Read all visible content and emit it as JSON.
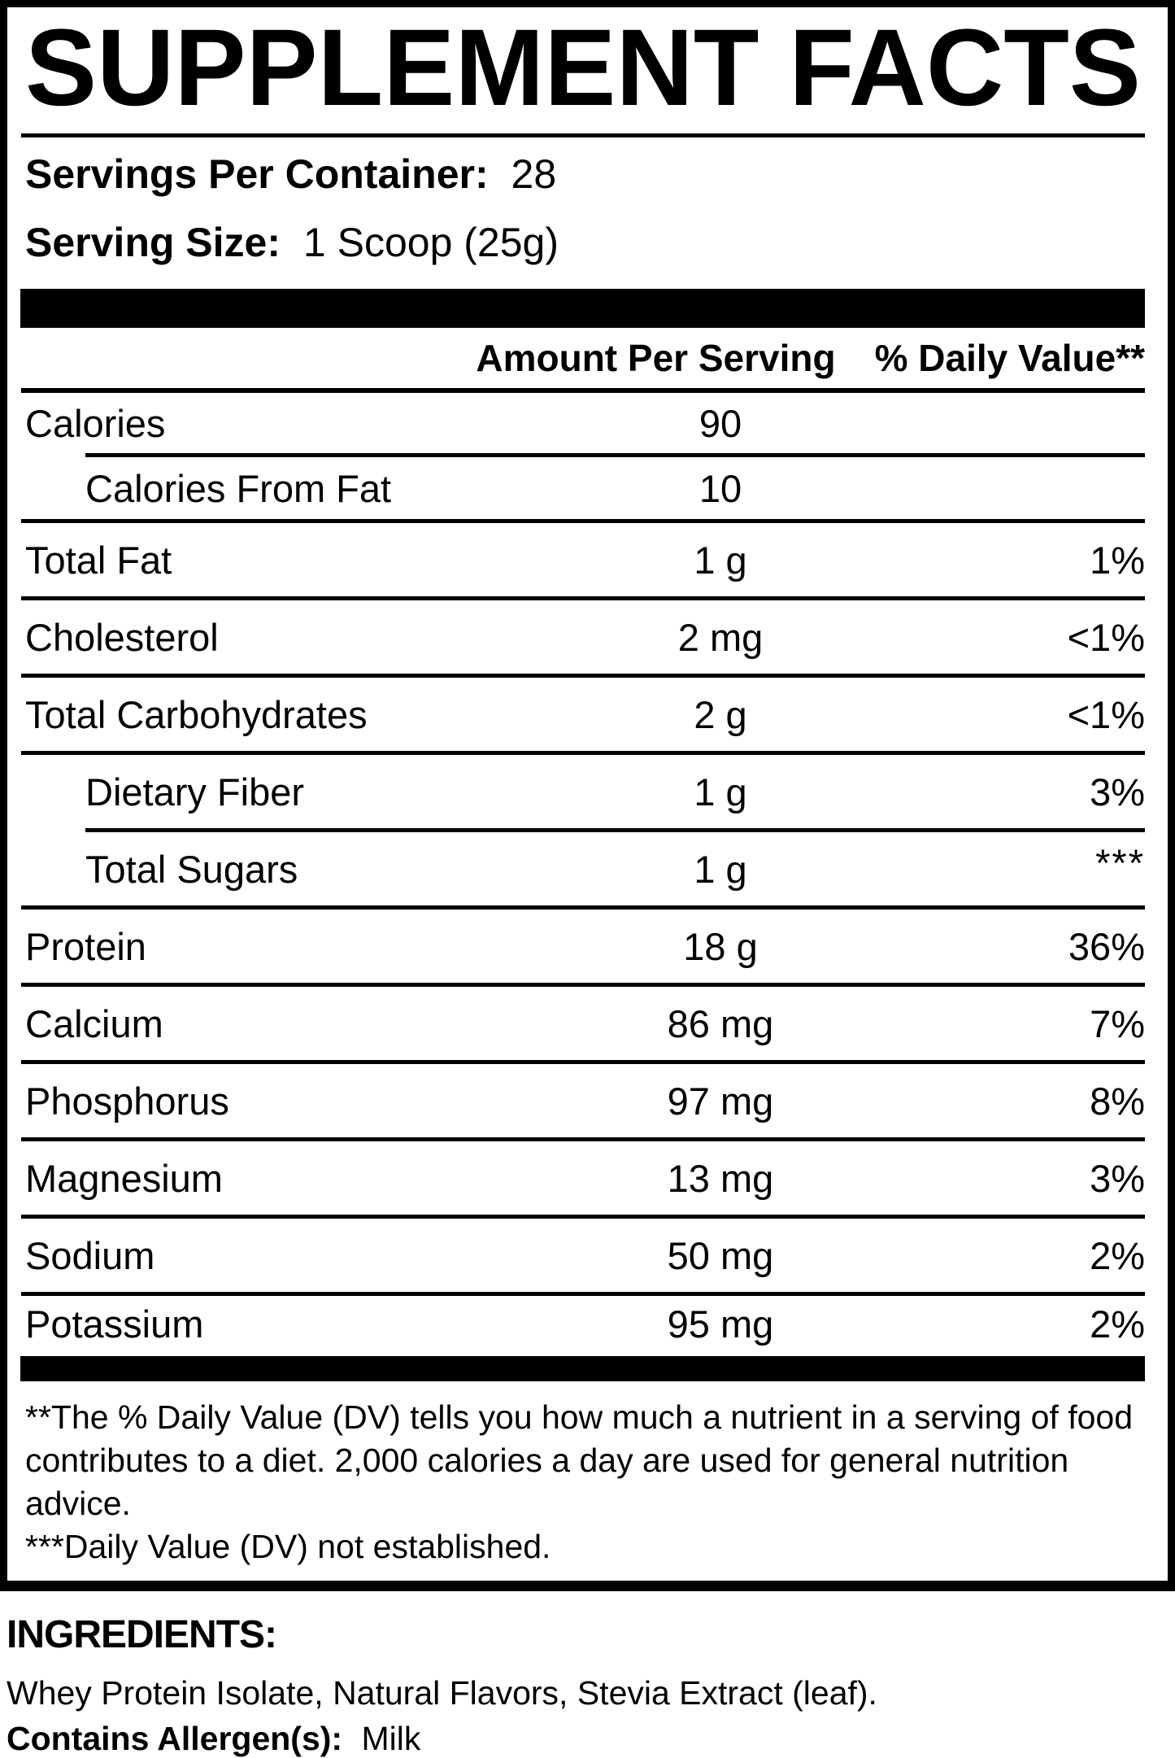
{
  "title": "SUPPLEMENT FACTS",
  "serving_info": {
    "servings_per_container_label": "Servings Per Container:",
    "servings_per_container_value": "28",
    "serving_size_label": "Serving Size:",
    "serving_size_value": "1 Scoop (25g)"
  },
  "table": {
    "amount_header": "Amount Per Serving",
    "dv_header": "% Daily Value**",
    "rows": [
      {
        "name": "Calories",
        "amount": "90",
        "dv": ""
      },
      {
        "name": "Calories From Fat",
        "amount": "10",
        "dv": ""
      },
      {
        "name": "Total Fat",
        "amount": "1 g",
        "dv": "1%"
      },
      {
        "name": "Cholesterol",
        "amount": "2 mg",
        "dv": "<1%"
      },
      {
        "name": "Total Carbohydrates",
        "amount": "2 g",
        "dv": "<1%"
      },
      {
        "name": "Dietary Fiber",
        "amount": "1 g",
        "dv": "3%"
      },
      {
        "name": "Total Sugars",
        "amount": "1 g",
        "dv": "***"
      },
      {
        "name": "Protein",
        "amount": "18 g",
        "dv": "36%"
      },
      {
        "name": "Calcium",
        "amount": "86 mg",
        "dv": "7%"
      },
      {
        "name": "Phosphorus",
        "amount": "97 mg",
        "dv": "8%"
      },
      {
        "name": "Magnesium",
        "amount": "13 mg",
        "dv": "3%"
      },
      {
        "name": "Sodium",
        "amount": "50 mg",
        "dv": "2%"
      },
      {
        "name": "Potassium",
        "amount": "95 mg",
        "dv": "2%"
      }
    ]
  },
  "footnotes": {
    "daily_value": "**The % Daily Value (DV) tells you how much a nutrient in a serving of food contributes to a diet. 2,000 calories a day are used for general nutrition advice.",
    "not_established": "***Daily Value (DV) not established."
  },
  "ingredients": {
    "heading": "INGREDIENTS:",
    "list": "Whey Protein Isolate, Natural Flavors, Stevia Extract (leaf).",
    "allergen_label": "Contains Allergen(s):",
    "allergen_value": "Milk"
  },
  "colors": {
    "text": "#000000",
    "background": "#ffffff"
  }
}
